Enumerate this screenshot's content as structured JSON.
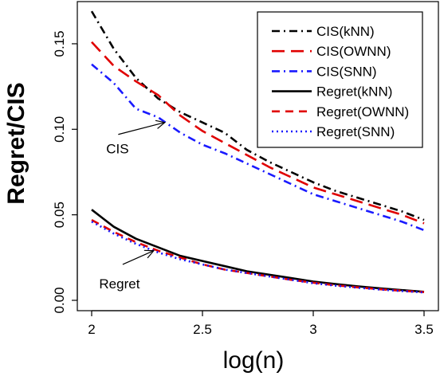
{
  "chart_data": {
    "type": "line",
    "title": "",
    "xlabel": "log(n)",
    "ylabel": "Regret/CIS",
    "xlim": [
      2,
      3.5
    ],
    "ylim": [
      0,
      0.17
    ],
    "xticks": [
      "2",
      "2.5",
      "3",
      "3.5"
    ],
    "yticks": [
      "0.00",
      "0.05",
      "0.10",
      "0.15"
    ],
    "grid": false,
    "legend_position": "top-right",
    "x": [
      2.0,
      2.1,
      2.2,
      2.3,
      2.4,
      2.5,
      2.6,
      2.7,
      2.8,
      2.9,
      3.0,
      3.1,
      3.2,
      3.3,
      3.4,
      3.5
    ],
    "series": [
      {
        "name": "CIS(kNN)",
        "color": "#000000",
        "dash": "dashdot",
        "values": [
          0.169,
          0.147,
          0.13,
          0.118,
          0.11,
          0.104,
          0.098,
          0.088,
          0.081,
          0.075,
          0.069,
          0.064,
          0.06,
          0.056,
          0.052,
          0.047
        ]
      },
      {
        "name": "CIS(OWNN)",
        "color": "#e00000",
        "dash": "longdash",
        "values": [
          0.151,
          0.137,
          0.128,
          0.12,
          0.108,
          0.099,
          0.092,
          0.085,
          0.078,
          0.072,
          0.066,
          0.062,
          0.058,
          0.054,
          0.05,
          0.045
        ]
      },
      {
        "name": "CIS(SNN)",
        "color": "#1a1aff",
        "dash": "dashdot",
        "values": [
          0.138,
          0.127,
          0.112,
          0.107,
          0.098,
          0.091,
          0.086,
          0.08,
          0.074,
          0.068,
          0.062,
          0.058,
          0.054,
          0.05,
          0.046,
          0.041
        ]
      },
      {
        "name": "Regret(kNN)",
        "color": "#000000",
        "dash": "solid",
        "values": [
          0.053,
          0.043,
          0.036,
          0.031,
          0.026,
          0.023,
          0.02,
          0.017,
          0.015,
          0.013,
          0.011,
          0.0095,
          0.0082,
          0.007,
          0.006,
          0.005
        ]
      },
      {
        "name": "Regret(OWNN)",
        "color": "#e00000",
        "dash": "dashed",
        "values": [
          0.047,
          0.04,
          0.034,
          0.029,
          0.025,
          0.021,
          0.018,
          0.016,
          0.014,
          0.012,
          0.0103,
          0.0088,
          0.0076,
          0.0065,
          0.0056,
          0.0048
        ]
      },
      {
        "name": "Regret(SNN)",
        "color": "#1a1aff",
        "dash": "dotted",
        "values": [
          0.046,
          0.039,
          0.033,
          0.028,
          0.024,
          0.021,
          0.018,
          0.016,
          0.014,
          0.012,
          0.01,
          0.0086,
          0.0074,
          0.0063,
          0.0054,
          0.0046
        ]
      }
    ],
    "annotations": [
      {
        "text": "CIS",
        "arrow_from": [
          2.12,
          0.097
        ],
        "arrow_to": [
          2.33,
          0.104
        ]
      },
      {
        "text": "Regret",
        "arrow_from": [
          2.14,
          0.021
        ],
        "arrow_to": [
          2.28,
          0.029
        ]
      }
    ]
  }
}
